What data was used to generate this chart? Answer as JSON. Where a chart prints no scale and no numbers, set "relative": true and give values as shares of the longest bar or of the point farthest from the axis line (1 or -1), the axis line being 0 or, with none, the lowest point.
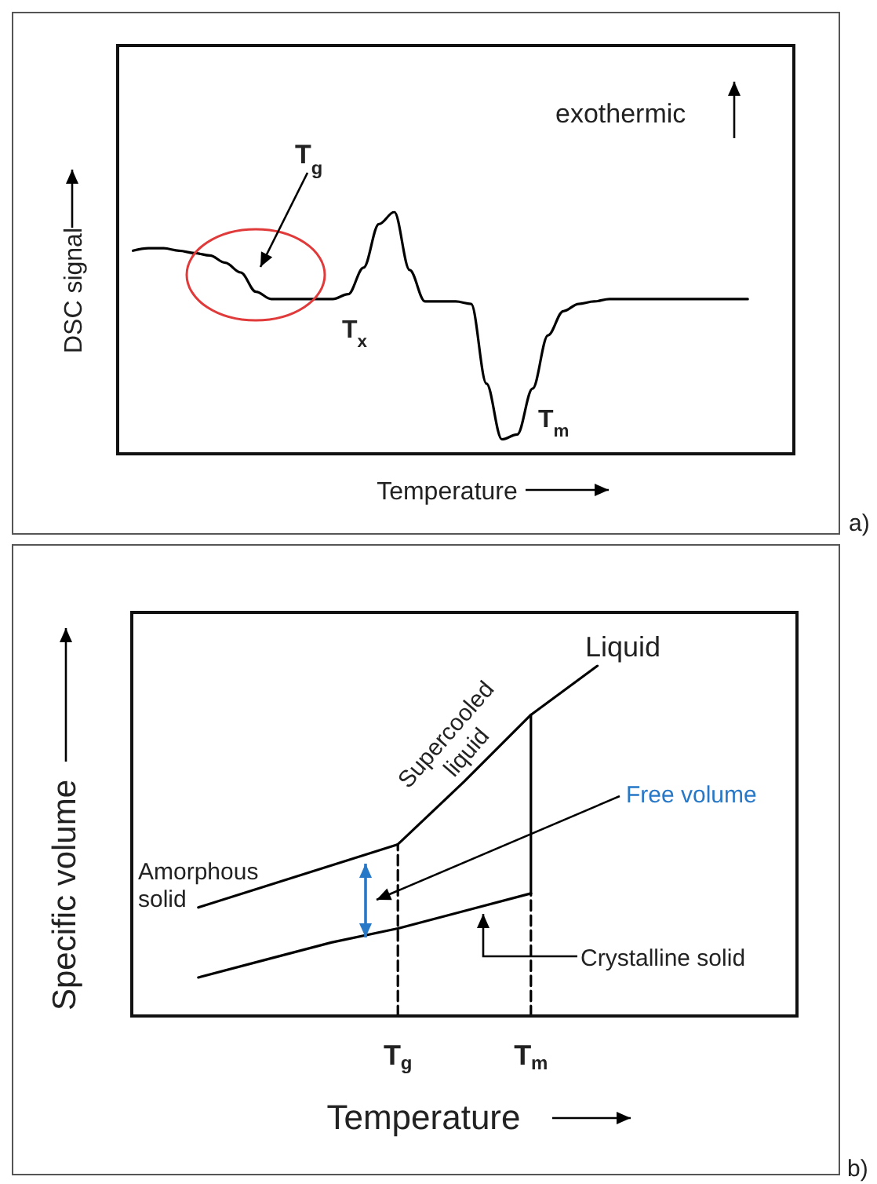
{
  "chart_data": [
    {
      "type": "line",
      "xlabel": "Temperature",
      "ylabel": "DSC signal",
      "relative": true,
      "tick_labels": false,
      "grid": false,
      "marker": "none",
      "line_style": "solid",
      "categories": [
        null,
        null,
        null,
        null,
        null,
        null,
        null,
        null,
        null,
        null,
        null,
        null,
        null,
        null,
        null,
        null,
        null,
        null,
        null,
        null,
        null,
        null,
        null,
        null,
        null,
        null,
        null,
        null,
        null,
        null,
        null,
        null,
        null,
        null,
        null,
        null,
        null,
        null,
        null,
        null,
        null,
        null,
        null,
        null,
        null
      ],
      "series": [
        {
          "color": "#000000",
          "values": [
            null,
            0.84,
            0.85,
            0.85,
            0.84,
            0.83,
            0.82,
            0.79,
            0.75,
            0.67,
            0.64,
            0.64,
            0.64,
            0.64,
            0.64,
            0.66,
            0.77,
            0.95,
            1,
            0.76,
            0.63,
            0.63,
            0.63,
            0.62,
            0.29,
            0.06,
            0.08,
            0.27,
            0.49,
            0.59,
            0.62,
            0.63,
            0.64,
            0.64,
            0.64,
            0.64,
            0.64,
            0.64,
            0.64,
            0.64,
            0.64,
            0.64,
            null,
            null,
            null
          ]
        }
      ],
      "annotations": [
        "T$_{g}$",
        "T$_{x}$",
        "T$_{m}$",
        "exothermic",
        "a)"
      ]
    },
    {
      "type": "line",
      "xlabel": "Temperature",
      "ylabel": "Specific volume",
      "relative": true,
      "tick_labels": "x",
      "grid": false,
      "marker": "none",
      "line_style": "solid",
      "categories": [
        null,
        null,
        null,
        null,
        "T$_{g}$",
        null,
        "T$_{m}$",
        null,
        null,
        null,
        null
      ],
      "series": [
        {
          "color": "#000000",
          "values": [
            null,
            0.31,
            0.37,
            0.43,
            0.49,
            null,
            null,
            null,
            null,
            null,
            null
          ]
        },
        {
          "color": "#000000",
          "values": [
            null,
            null,
            null,
            null,
            0.49,
            0.67,
            0.86,
            1,
            null,
            null,
            null
          ]
        },
        {
          "color": "#000000",
          "values": [
            null,
            0.11,
            0.16,
            0.21,
            0.25,
            0.3,
            0.35,
            null,
            null,
            null,
            null
          ]
        },
        {
          "color": "#000000",
          "x": [
            "T$_{m}$",
            "T$_{m}$"
          ],
          "values": [
            0.35,
            0.86
          ]
        },
        {
          "color": "#000000",
          "x": [
            "T$_{g}$",
            "T$_{g}$"
          ],
          "values": [
            0,
            0.49
          ],
          "line_style": "dashed"
        },
        {
          "color": "#000000",
          "x": [
            "T$_{m}$",
            "T$_{m}$"
          ],
          "values": [
            0,
            0.35
          ],
          "line_style": "dashed"
        }
      ],
      "annotations": [
        "Liquid",
        "Supercooled\nliquid",
        "Free volume",
        "Amorphous\nsolid",
        "Crystalline solid",
        "b)"
      ]
    }
  ]
}
